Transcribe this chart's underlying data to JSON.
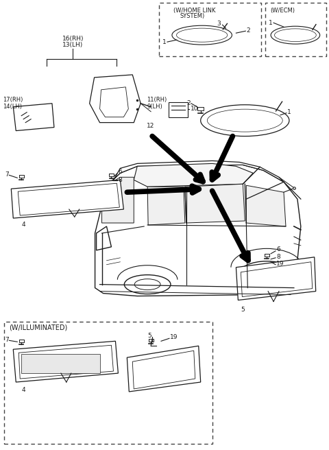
{
  "bg_color": "#ffffff",
  "line_color": "#1a1a1a",
  "fig_width": 4.8,
  "fig_height": 6.56,
  "dpi": 100,
  "xlim": [
    0,
    480
  ],
  "ylim": [
    0,
    656
  ]
}
